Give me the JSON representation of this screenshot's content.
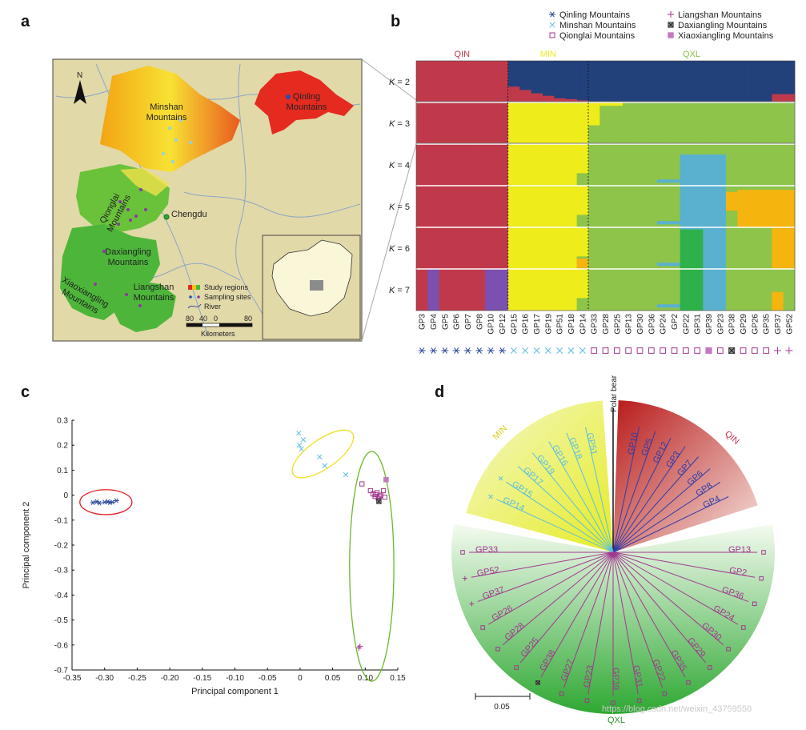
{
  "panels": {
    "a": "a",
    "b": "b",
    "c": "c",
    "d": "d"
  },
  "colors": {
    "qin": "#c0394a",
    "min": "#eeec1a",
    "qxl": "#8dc449",
    "navy": "#22407a",
    "blue": "#5ab1cf",
    "orange": "#f5b40e",
    "green": "#2fb14a",
    "purple": "#7b50b0",
    "qin_sym": "#2e4a9e",
    "min_sym": "#5bbfe0",
    "qxl_sym": "#a0388f"
  },
  "map": {
    "north": "N",
    "regions": [
      "Minshan\nMountains",
      "Qinling\nMountains",
      "Qionglai\nMountains",
      "Daxiangling\nMountains",
      "Xiaoxiangling\nMountains",
      "Liangshan\nMountains"
    ],
    "city": "Chengdu",
    "legend": [
      "Study regions",
      "Sampling sites",
      "River"
    ],
    "scale_ticks": [
      "80",
      "40",
      "0",
      "80"
    ],
    "scale_unit": "Kilometers"
  },
  "legend_b": [
    {
      "sym": "asterisk",
      "label": "Qinling Mountains",
      "color": "#2e4a9e"
    },
    {
      "sym": "plus",
      "label": "Liangshan Mountains",
      "color": "#a0388f"
    },
    {
      "sym": "cross",
      "label": "Minshan Mountains",
      "color": "#5bbfe0"
    },
    {
      "sym": "xbox",
      "label": "Daxiangling Mountains",
      "color": "#a0388f"
    },
    {
      "sym": "square",
      "label": "Qionglai Mountains",
      "color": "#a0388f"
    },
    {
      "sym": "filled",
      "label": "Xiaoxiangling Mountains",
      "color": "#c47ac0"
    }
  ],
  "structure": {
    "groups": [
      {
        "label": "QIN",
        "color": "#c0394a"
      },
      {
        "label": "MIN",
        "color": "#eeec1a"
      },
      {
        "label": "QXL",
        "color": "#8dc449"
      }
    ],
    "k_prefix": "K",
    "k_values": [
      "= 2",
      "= 3",
      "= 4",
      "= 5",
      "= 6",
      "= 7"
    ],
    "samples": [
      "GP3",
      "GP4",
      "GP5",
      "GP6",
      "GP7",
      "GP8",
      "GP10",
      "GP12",
      "GP15",
      "GP16",
      "GP17",
      "GP19",
      "GP51",
      "GP18",
      "GP14",
      "GP33",
      "GP28",
      "GP25",
      "GP13",
      "GP30",
      "GP36",
      "GP24",
      "GP2",
      "GP22",
      "GP31",
      "GP39",
      "GP23",
      "GP38",
      "GP29",
      "GP26",
      "GP35",
      "GP37",
      "GP52"
    ],
    "symbols": [
      "asterisk",
      "asterisk",
      "asterisk",
      "asterisk",
      "asterisk",
      "asterisk",
      "asterisk",
      "asterisk",
      "cross",
      "cross",
      "cross",
      "cross",
      "cross",
      "cross",
      "cross",
      "square",
      "square",
      "square",
      "square",
      "square",
      "square",
      "square",
      "square",
      "square",
      "square",
      "filled",
      "square",
      "xbox",
      "square",
      "square",
      "square",
      "plus",
      "plus"
    ]
  },
  "chart_data": [
    {
      "type": "scatter",
      "title": "",
      "xlabel": "Principal component 1",
      "ylabel": "Principal component 2",
      "xlim": [
        -0.35,
        0.15
      ],
      "ylim": [
        -0.7,
        0.3
      ],
      "xticks": [
        "-0.35",
        "-0.30",
        "-0.25",
        "-0.20",
        "-0.15",
        "-0.10",
        "-0.05",
        "0",
        "0.05",
        "0.10",
        "0.15"
      ],
      "yticks": [
        "0.3",
        "0.2",
        "0.1",
        "0",
        "-0.1",
        "-0.2",
        "-0.3",
        "-0.4",
        "-0.5",
        "-0.6",
        "-0.7"
      ],
      "series": [
        {
          "name": "QIN",
          "marker": "asterisk",
          "color": "#2e4a9e",
          "points": [
            [
              -0.318,
              -0.03
            ],
            [
              -0.312,
              -0.026
            ],
            [
              -0.308,
              -0.032
            ],
            [
              -0.3,
              -0.028
            ],
            [
              -0.295,
              -0.026
            ],
            [
              -0.292,
              -0.03
            ],
            [
              -0.288,
              -0.028
            ],
            [
              -0.282,
              -0.022
            ]
          ]
        },
        {
          "name": "MIN",
          "marker": "cross",
          "color": "#5bbfe0",
          "points": [
            [
              -0.002,
              0.248
            ],
            [
              0.005,
              0.222
            ],
            [
              -0.001,
              0.2
            ],
            [
              0.002,
              0.185
            ],
            [
              0.03,
              0.153
            ],
            [
              0.038,
              0.118
            ],
            [
              0.07,
              0.082
            ]
          ]
        },
        {
          "name": "QXL",
          "marker": "square",
          "color": "#a0388f",
          "points": [
            [
              0.095,
              0.045
            ],
            [
              0.108,
              0.018
            ],
            [
              0.112,
              0.005
            ],
            [
              0.115,
              -0.005
            ],
            [
              0.118,
              0.01
            ],
            [
              0.12,
              -0.012
            ],
            [
              0.124,
              0.0
            ],
            [
              0.128,
              0.018
            ],
            [
              0.13,
              -0.008
            ],
            [
              0.116,
              0.002
            ],
            [
              0.122,
              -0.004
            ]
          ]
        },
        {
          "name": "Xiaoxiangling",
          "marker": "filled",
          "color": "#c47ac0",
          "points": [
            [
              0.132,
              0.062
            ]
          ]
        },
        {
          "name": "Daxiangling",
          "marker": "xbox",
          "color": "#a0388f",
          "points": [
            [
              0.121,
              -0.025
            ]
          ]
        },
        {
          "name": "Liangshan",
          "marker": "plus",
          "color": "#a0388f",
          "points": [
            [
              0.09,
              -0.612
            ],
            [
              0.092,
              -0.605
            ]
          ]
        }
      ],
      "ellipses": [
        "QIN",
        "MIN",
        "QXL"
      ]
    },
    {
      "type": "tree",
      "root_label": "Polar bear",
      "groups": [
        "QIN",
        "MIN",
        "QXL"
      ],
      "scale_label": "0.05",
      "leaves": {
        "QIN": [
          "GP10",
          "GP5",
          "GP12",
          "GP3",
          "GP7",
          "GP6",
          "GP8",
          "GP4"
        ],
        "MIN": [
          "GP51",
          "GP18",
          "GP16",
          "GP19",
          "GP17",
          "GP15",
          "GP14"
        ],
        "QXL": [
          "GP13",
          "GP2",
          "GP36",
          "GP24",
          "GP30",
          "GP29",
          "GP35",
          "GP22",
          "GP31",
          "GP39",
          "GP23",
          "GP27",
          "GP38",
          "GP25",
          "GP28",
          "GP26",
          "GP37",
          "GP52",
          "GP33"
        ]
      }
    }
  ],
  "watermark": "https://blog.csdn.net/weixin_43759550"
}
